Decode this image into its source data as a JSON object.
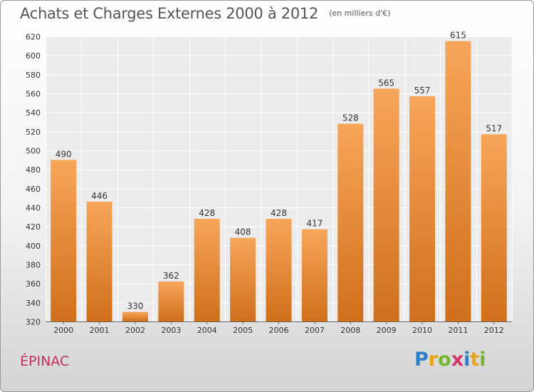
{
  "title": "Achats et Charges Externes 2000 à 2012",
  "unit": "(en milliers d'€)",
  "commune": "ÉPINAC",
  "logo": {
    "text": "Proxiti",
    "letters": [
      {
        "ch": "P",
        "color": "#2f7fc8"
      },
      {
        "ch": "r",
        "color": "#e8a317"
      },
      {
        "ch": "o",
        "color": "#77b52f"
      },
      {
        "ch": "x",
        "color": "#d6336c"
      },
      {
        "ch": "i",
        "color": "#2f7fc8"
      },
      {
        "ch": "t",
        "color": "#e8a317"
      },
      {
        "ch": "i",
        "color": "#77b52f"
      }
    ]
  },
  "chart_data": {
    "type": "bar",
    "title": "Achats et Charges Externes 2000 à 2012",
    "unit": "(en milliers d'€)",
    "xlabel": "",
    "ylabel": "",
    "categories": [
      "2000",
      "2001",
      "2002",
      "2003",
      "2004",
      "2005",
      "2006",
      "2007",
      "2008",
      "2009",
      "2010",
      "2011",
      "2012"
    ],
    "values": [
      490,
      446,
      330,
      362,
      428,
      408,
      428,
      417,
      528,
      565,
      557,
      615,
      517
    ],
    "ylim": [
      320,
      620
    ],
    "yticks": [
      320,
      340,
      360,
      380,
      400,
      420,
      440,
      460,
      480,
      500,
      520,
      540,
      560,
      580,
      600,
      620
    ],
    "grid": true,
    "bar_color_top": "#f7a65a",
    "bar_color_bottom": "#d06f1a"
  }
}
